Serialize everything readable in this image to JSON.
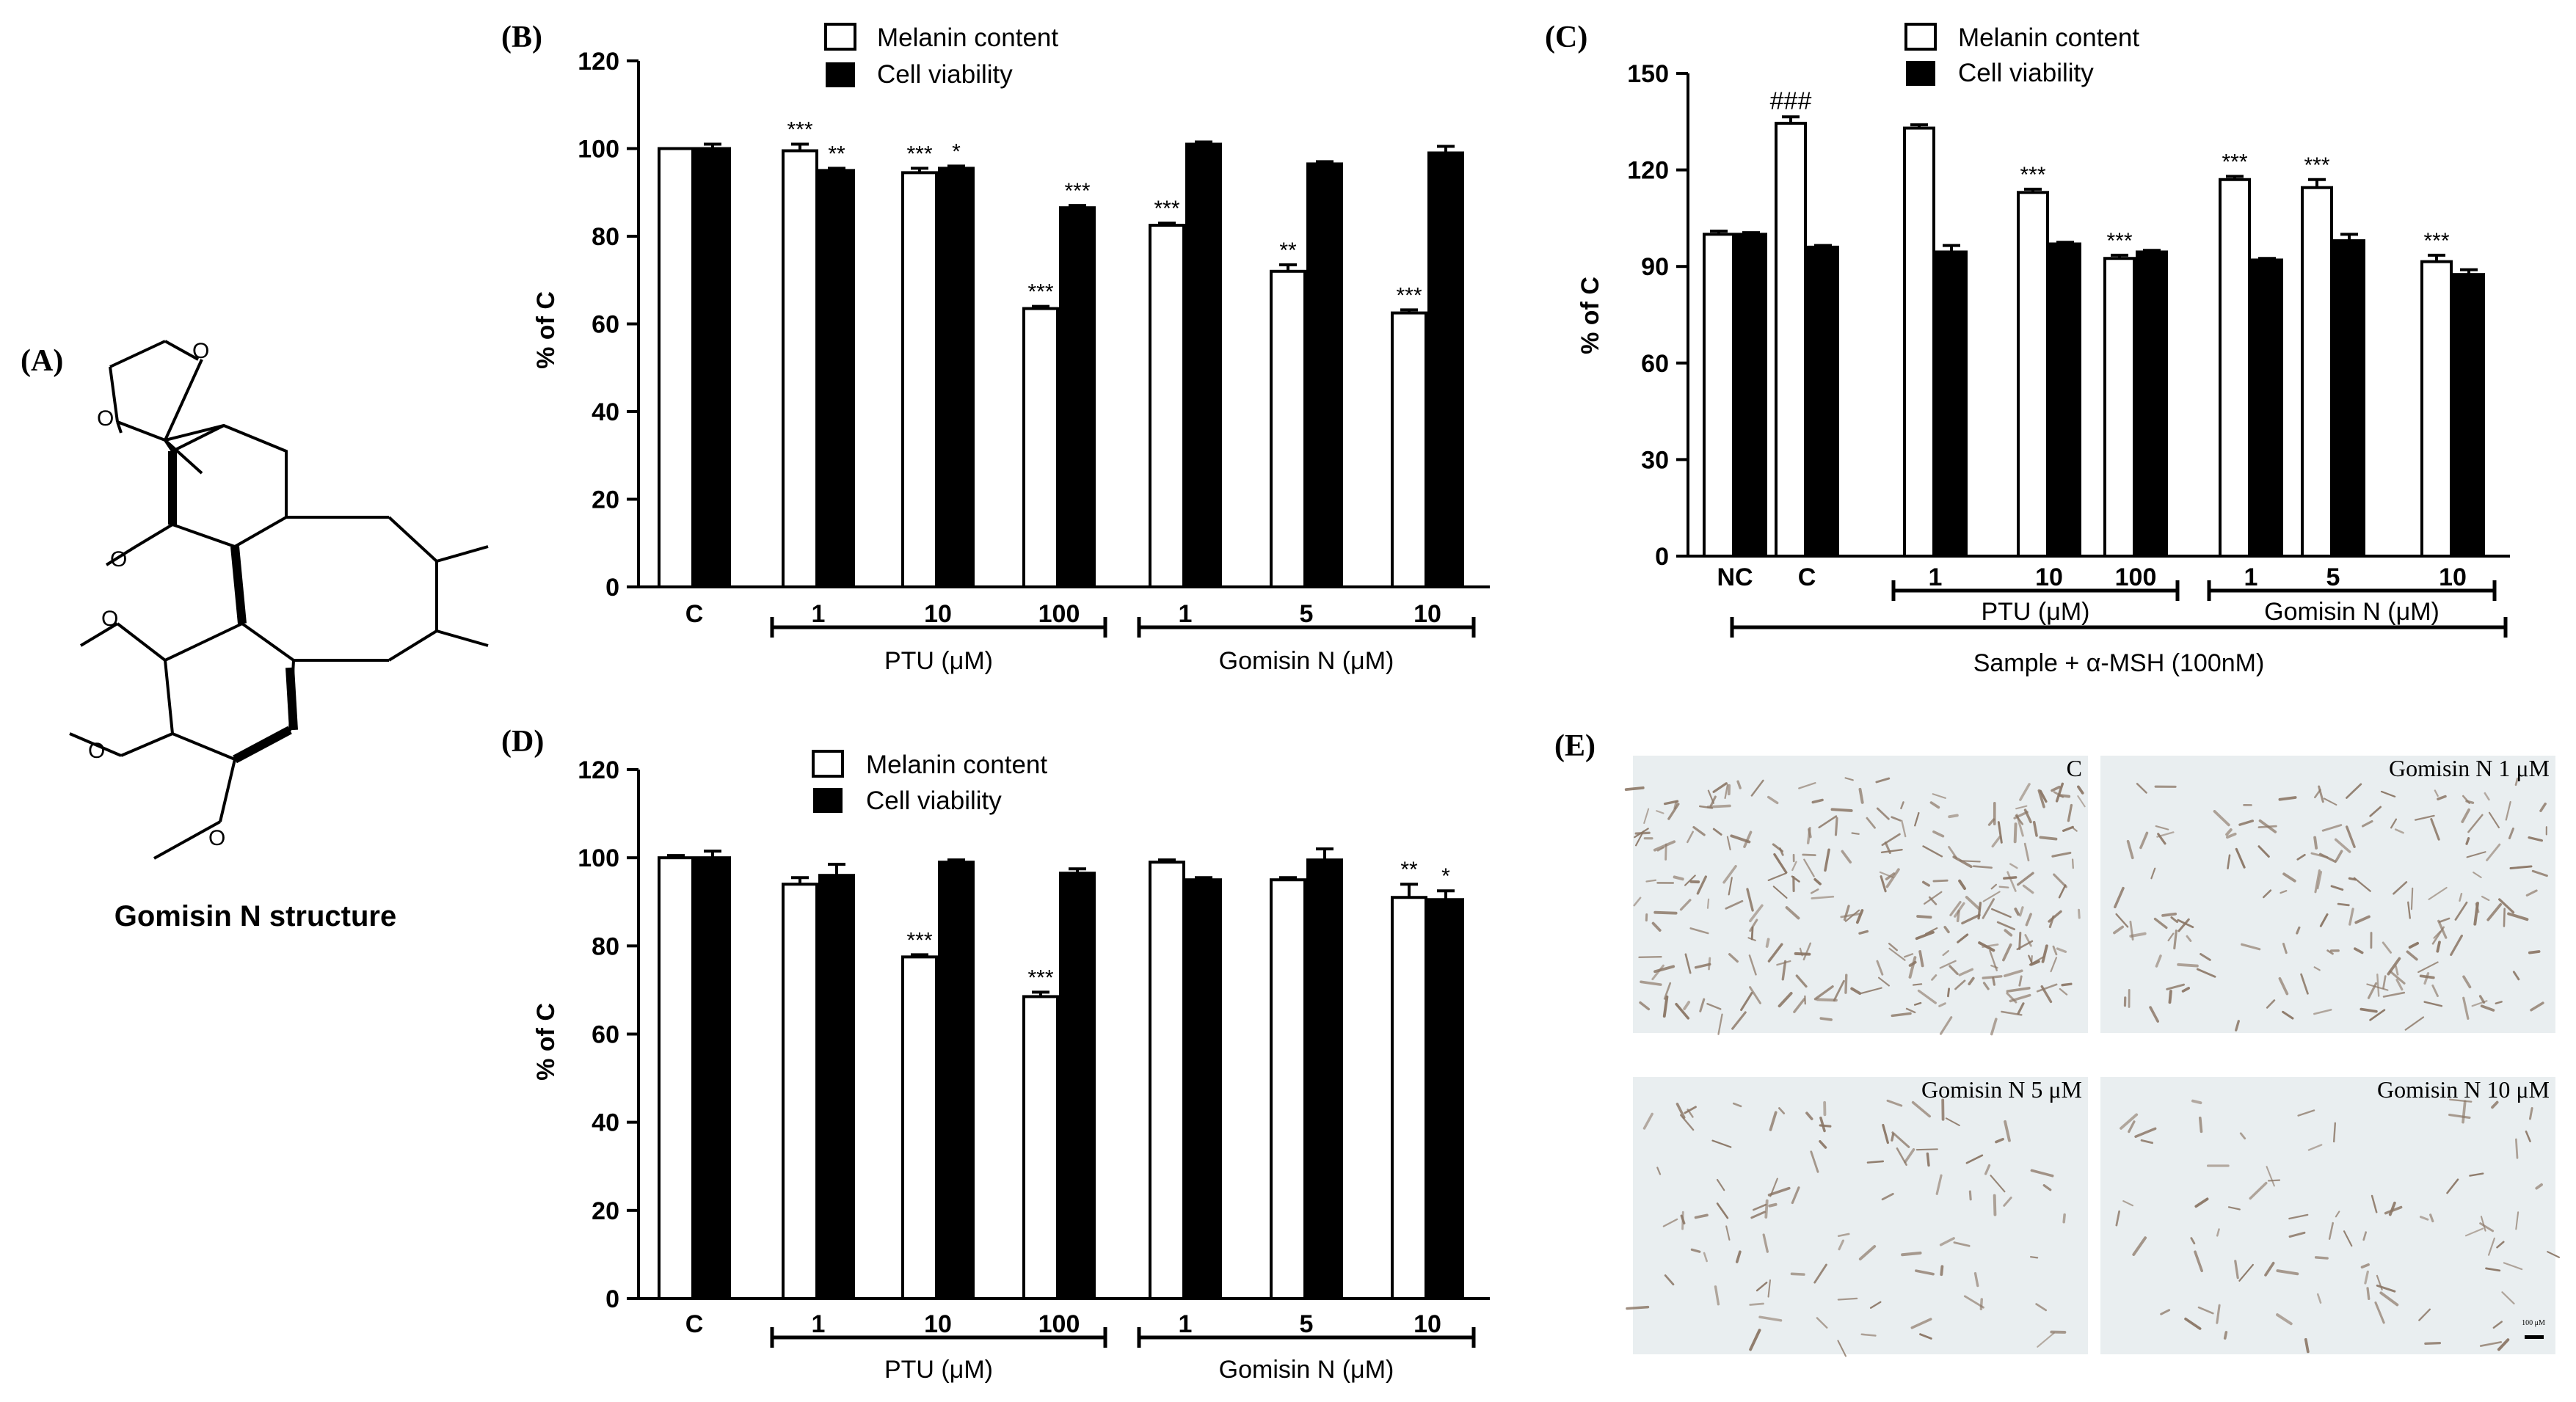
{
  "panel_labels": {
    "a": "(A)",
    "b": "(B)",
    "c": "(C)",
    "d": "(D)",
    "e": "(E)"
  },
  "structure": {
    "caption": "Gomisin N structure",
    "atoms": [
      "O",
      "O",
      "O",
      "O",
      "O",
      "O"
    ]
  },
  "legend": {
    "melanin": "Melanin content",
    "viability": "Cell viability"
  },
  "colors": {
    "melanin_fill": "#ffffff",
    "viability_fill": "#000000",
    "stroke": "#000000",
    "photo_bg": "#e9eef0",
    "cell": "#8a7564"
  },
  "chart_data": [
    {
      "id": "B",
      "type": "bar",
      "ylabel": "% of C",
      "ylim": [
        0,
        120
      ],
      "yticks": [
        0,
        20,
        40,
        60,
        80,
        100,
        120
      ],
      "categories": [
        "C",
        "1",
        "10",
        "100",
        "1",
        "5",
        "10"
      ],
      "series": [
        {
          "name": "Melanin content",
          "values": [
            100,
            99.5,
            94.5,
            63.5,
            82.5,
            72,
            62.5
          ],
          "errors": [
            0,
            1.5,
            1,
            0.5,
            0.5,
            1.5,
            0.7
          ]
        },
        {
          "name": "Cell viability",
          "values": [
            100,
            95,
            95.5,
            86.5,
            101,
            96.5,
            99
          ],
          "errors": [
            1,
            0.5,
            0.5,
            0.5,
            0.5,
            0.5,
            1.5
          ]
        }
      ],
      "annotations": [
        {
          "cat": 1,
          "series": 0,
          "text": "***"
        },
        {
          "cat": 1,
          "series": 1,
          "text": "**"
        },
        {
          "cat": 2,
          "series": 0,
          "text": "***"
        },
        {
          "cat": 2,
          "series": 1,
          "text": "*"
        },
        {
          "cat": 3,
          "series": 0,
          "text": "***"
        },
        {
          "cat": 3,
          "series": 1,
          "text": "***"
        },
        {
          "cat": 4,
          "series": 0,
          "text": "***"
        },
        {
          "cat": 5,
          "series": 0,
          "text": "**"
        },
        {
          "cat": 6,
          "series": 0,
          "text": "***"
        }
      ],
      "group_lines": [
        {
          "from": 1,
          "to": 3,
          "label": "PTU (μM)"
        },
        {
          "from": 4,
          "to": 6,
          "label": "Gomisin N (μM)"
        }
      ]
    },
    {
      "id": "C",
      "type": "bar",
      "ylabel": "% of C",
      "ylim": [
        0,
        150
      ],
      "yticks": [
        0,
        30,
        60,
        90,
        120,
        150
      ],
      "categories": [
        "NC",
        "C",
        "1",
        "10",
        "100",
        "1",
        "5",
        "10"
      ],
      "series": [
        {
          "name": "Melanin content",
          "values": [
            100,
            134.5,
            133,
            113,
            92.5,
            117,
            114.5,
            91.5
          ],
          "errors": [
            1,
            2,
            1,
            1,
            1,
            1,
            2.5,
            2
          ]
        },
        {
          "name": "Cell viability",
          "values": [
            100,
            96,
            94.5,
            97,
            94.5,
            92,
            98,
            87.5
          ],
          "errors": [
            0.5,
            0.5,
            2,
            0.5,
            0.5,
            0.5,
            2,
            1.5
          ]
        }
      ],
      "annotations": [
        {
          "cat": 1,
          "series": 0,
          "text": "###"
        },
        {
          "cat": 3,
          "series": 0,
          "text": "***"
        },
        {
          "cat": 4,
          "series": 0,
          "text": "***"
        },
        {
          "cat": 5,
          "series": 0,
          "text": "***"
        },
        {
          "cat": 6,
          "series": 0,
          "text": "***"
        },
        {
          "cat": 7,
          "series": 0,
          "text": "***"
        }
      ],
      "group_lines": [
        {
          "from": 2,
          "to": 4,
          "label": "PTU (μM)"
        },
        {
          "from": 5,
          "to": 7,
          "label": "Gomisin N (μM)"
        }
      ],
      "outer_line": {
        "from": 1,
        "to": 7,
        "label": "Sample + α-MSH (100nM)"
      }
    },
    {
      "id": "D",
      "type": "bar",
      "ylabel": "% of C",
      "ylim": [
        0,
        120
      ],
      "yticks": [
        0,
        20,
        40,
        60,
        80,
        100,
        120
      ],
      "categories": [
        "C",
        "1",
        "10",
        "100",
        "1",
        "5",
        "10"
      ],
      "series": [
        {
          "name": "Melanin content",
          "values": [
            100,
            94,
            77.5,
            68.5,
            99,
            95,
            91
          ],
          "errors": [
            0.5,
            1.5,
            0.5,
            1,
            0.5,
            0.5,
            3
          ]
        },
        {
          "name": "Cell viability",
          "values": [
            100,
            96,
            99,
            96.5,
            95,
            99.5,
            90.5
          ],
          "errors": [
            1.5,
            2.5,
            0.5,
            1,
            0.5,
            2.5,
            2
          ]
        }
      ],
      "annotations": [
        {
          "cat": 2,
          "series": 0,
          "text": "***"
        },
        {
          "cat": 3,
          "series": 0,
          "text": "***"
        },
        {
          "cat": 6,
          "series": 0,
          "text": "**"
        },
        {
          "cat": 6,
          "series": 1,
          "text": "*"
        }
      ],
      "group_lines": [
        {
          "from": 1,
          "to": 3,
          "label": "PTU (μM)"
        },
        {
          "from": 4,
          "to": 6,
          "label": "Gomisin N (μM)"
        }
      ]
    }
  ],
  "photos": [
    {
      "label": "C",
      "density": 1.0
    },
    {
      "label": "Gomisin N 1 μM",
      "density": 0.6
    },
    {
      "label": "Gomisin N 5 μM",
      "density": 0.35
    },
    {
      "label": "Gomisin N 10 μM",
      "density": 0.3
    }
  ],
  "scale_bar": {
    "label": "100 μM"
  }
}
